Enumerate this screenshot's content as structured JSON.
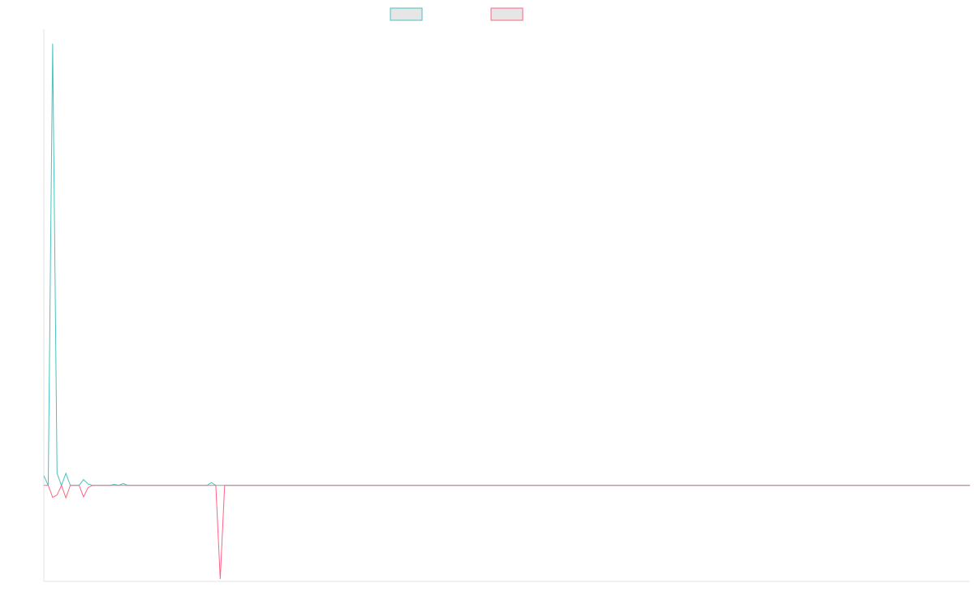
{
  "chart_data": {
    "type": "line",
    "title": "",
    "xlabel": "",
    "ylabel": "",
    "grid": false,
    "legend_position": "top",
    "xlim": [
      0,
      210
    ],
    "ylim": [
      -20,
      95
    ],
    "series": [
      {
        "color": "#4bc0c0",
        "x": [
          0,
          1,
          2,
          3,
          4,
          5,
          6,
          7,
          8,
          9,
          10,
          11,
          12,
          13,
          14,
          15,
          16,
          17,
          18,
          19,
          20,
          21,
          22,
          23,
          24,
          25,
          26,
          27,
          28,
          29,
          30,
          31,
          32,
          33,
          34,
          35,
          36,
          37,
          38,
          39,
          40,
          41,
          42,
          43,
          44,
          45,
          46,
          47,
          48,
          49,
          50,
          60,
          80,
          100,
          120,
          140,
          160,
          180,
          200,
          210
        ],
        "y": [
          2,
          0,
          92,
          2.5,
          0,
          2.5,
          0,
          0,
          0,
          1.2,
          0.3,
          0,
          0,
          0,
          0,
          0,
          0.2,
          0,
          0.4,
          0,
          0,
          0,
          0,
          0,
          0,
          0,
          0,
          0,
          0,
          0,
          0,
          0,
          0,
          0,
          0,
          0,
          0,
          0,
          0.6,
          0,
          0,
          0,
          0,
          0,
          0,
          0,
          0,
          0,
          0,
          0,
          0,
          0,
          0,
          0,
          0,
          0,
          0,
          0,
          0,
          0
        ]
      },
      {
        "color": "#ff6384",
        "x": [
          0,
          1,
          2,
          3,
          4,
          5,
          6,
          7,
          8,
          9,
          10,
          11,
          12,
          13,
          14,
          15,
          16,
          17,
          18,
          19,
          20,
          21,
          22,
          23,
          24,
          25,
          26,
          27,
          28,
          29,
          30,
          31,
          32,
          33,
          34,
          35,
          36,
          37,
          38,
          39,
          40,
          41,
          42,
          43,
          44,
          45,
          46,
          47,
          48,
          49,
          50,
          60,
          80,
          100,
          120,
          140,
          160,
          180,
          200,
          210
        ],
        "y": [
          0,
          0,
          -2.5,
          -2,
          0,
          -2.6,
          0,
          0,
          0,
          -2.4,
          -0.5,
          0,
          0,
          0,
          0,
          0,
          0,
          0,
          0,
          0,
          0,
          0,
          0,
          0,
          0,
          0,
          0,
          0,
          0,
          0,
          0,
          0,
          0,
          0,
          0,
          0,
          0,
          0,
          0,
          0,
          -19.5,
          0,
          0,
          0,
          0,
          0,
          0,
          0,
          0,
          0,
          0,
          0,
          0,
          0,
          0,
          0,
          0,
          0,
          0,
          0
        ]
      }
    ]
  }
}
